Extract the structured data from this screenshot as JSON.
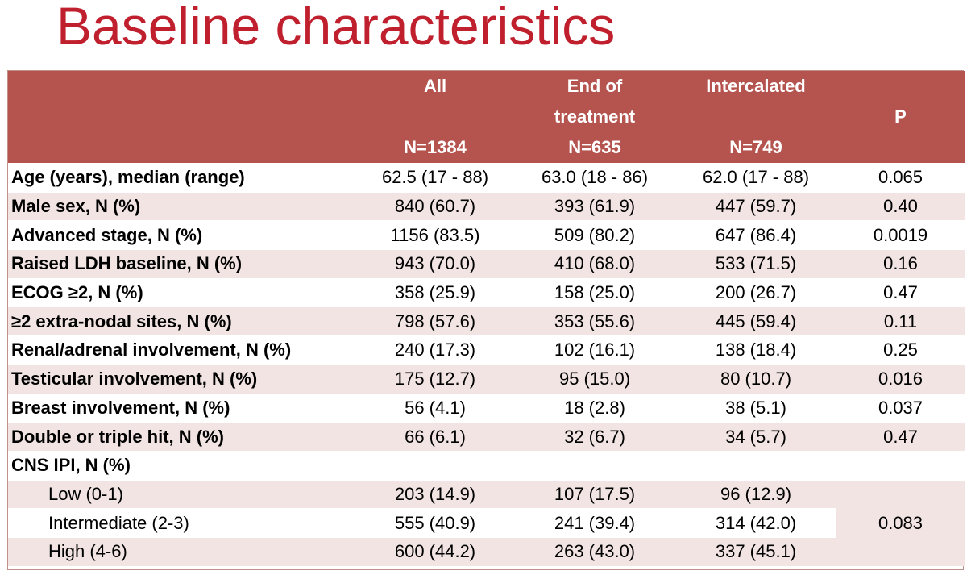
{
  "title": "Baseline characteristics",
  "header": {
    "all": {
      "label": "All",
      "n": "N=1384"
    },
    "end_of_treatment": {
      "label_line1": "End of",
      "label_line2": "treatment",
      "n": "N=635"
    },
    "intercalated": {
      "label": "Intercalated",
      "n": "N=749"
    },
    "p": {
      "label": "P"
    }
  },
  "rows": [
    {
      "label": "Age (years), median (range)",
      "all": "62.5 (17 - 88)",
      "eot": "63.0 (18 - 86)",
      "int": "62.0 (17 - 88)",
      "p": "0.065"
    },
    {
      "label": "Male sex, N (%)",
      "all": "840 (60.7)",
      "eot": "393 (61.9)",
      "int": "447 (59.7)",
      "p": "0.40"
    },
    {
      "label": "Advanced stage, N (%)",
      "all": "1156 (83.5)",
      "eot": "509 (80.2)",
      "int": "647 (86.4)",
      "p": "0.0019"
    },
    {
      "label": "Raised LDH baseline, N (%)",
      "all": "943 (70.0)",
      "eot": "410 (68.0)",
      "int": "533 (71.5)",
      "p": "0.16"
    },
    {
      "label": "ECOG ≥2, N (%)",
      "all": "358 (25.9)",
      "eot": "158 (25.0)",
      "int": "200 (26.7)",
      "p": "0.47"
    },
    {
      "label": "≥2 extra-nodal sites, N (%)",
      "all": "798 (57.6)",
      "eot": "353 (55.6)",
      "int": "445 (59.4)",
      "p": "0.11"
    },
    {
      "label": "Renal/adrenal involvement, N (%)",
      "all": "240 (17.3)",
      "eot": "102 (16.1)",
      "int": "138 (18.4)",
      "p": "0.25"
    },
    {
      "label": "Testicular involvement, N (%)",
      "all": "175 (12.7)",
      "eot": "95 (15.0)",
      "int": "80 (10.7)",
      "p": "0.016"
    },
    {
      "label": "Breast involvement, N (%)",
      "all": "56 (4.1)",
      "eot": "18 (2.8)",
      "int": "38 (5.1)",
      "p": "0.037"
    },
    {
      "label": "Double or triple hit, N (%)",
      "all": "66 (6.1)",
      "eot": "32 (6.7)",
      "int": "34 (5.7)",
      "p": "0.47"
    }
  ],
  "cns_ipi": {
    "label": "CNS IPI, N (%)",
    "p": "0.083",
    "rows": [
      {
        "label": "Low (0-1)",
        "all": "203 (14.9)",
        "eot": "107 (17.5)",
        "int": "96 (12.9)"
      },
      {
        "label": "Intermediate (2-3)",
        "all": "555 (40.9)",
        "eot": "241 (39.4)",
        "int": "314 (42.0)"
      },
      {
        "label": "High (4-6)",
        "all": "600 (44.2)",
        "eot": "263 (43.0)",
        "int": "337 (45.1)"
      }
    ]
  },
  "colors": {
    "title": "#c0202e",
    "header_bg": "#b5544e",
    "row_alt_bg": "#f1e4e2"
  }
}
